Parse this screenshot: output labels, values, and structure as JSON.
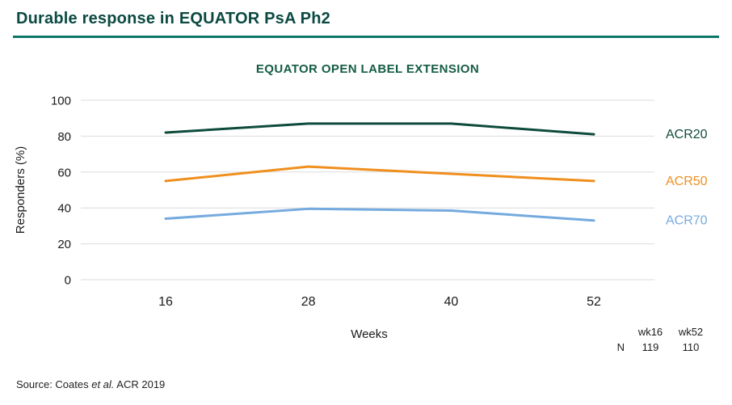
{
  "page": {
    "title": "Durable response in EQUATOR PsA Ph2",
    "source": {
      "prefix": "Source: Coates ",
      "italic": "et al.",
      "suffix": " ACR 2019"
    }
  },
  "chart_data": {
    "type": "line",
    "title": "EQUATOR OPEN LABEL EXTENSION",
    "xlabel": "Weeks",
    "ylabel": "Responders (%)",
    "x": [
      16,
      28,
      40,
      52
    ],
    "ylim": [
      0,
      100
    ],
    "yticks": [
      0,
      20,
      40,
      60,
      80,
      100
    ],
    "grid": "horizontal",
    "legend_position": "right-of-lines",
    "series": [
      {
        "name": "ACR20",
        "color": "#0e4b3b",
        "values": [
          82,
          87,
          87,
          81
        ]
      },
      {
        "name": "ACR50",
        "color": "#ef8f1e",
        "values": [
          55,
          63,
          59,
          55
        ]
      },
      {
        "name": "ACR70",
        "color": "#75aadf",
        "values": [
          34,
          39.5,
          38.5,
          33
        ]
      }
    ],
    "n_table": {
      "row_label": "N",
      "columns": [
        "wk16",
        "wk52"
      ],
      "values": [
        119,
        110
      ]
    }
  },
  "colors": {
    "title_text": "#0b4a42",
    "title_rule": "#0e7667",
    "chart_title": "#155c44",
    "grid": "#dbdbdb",
    "axis_text": "#1a1a1a"
  }
}
